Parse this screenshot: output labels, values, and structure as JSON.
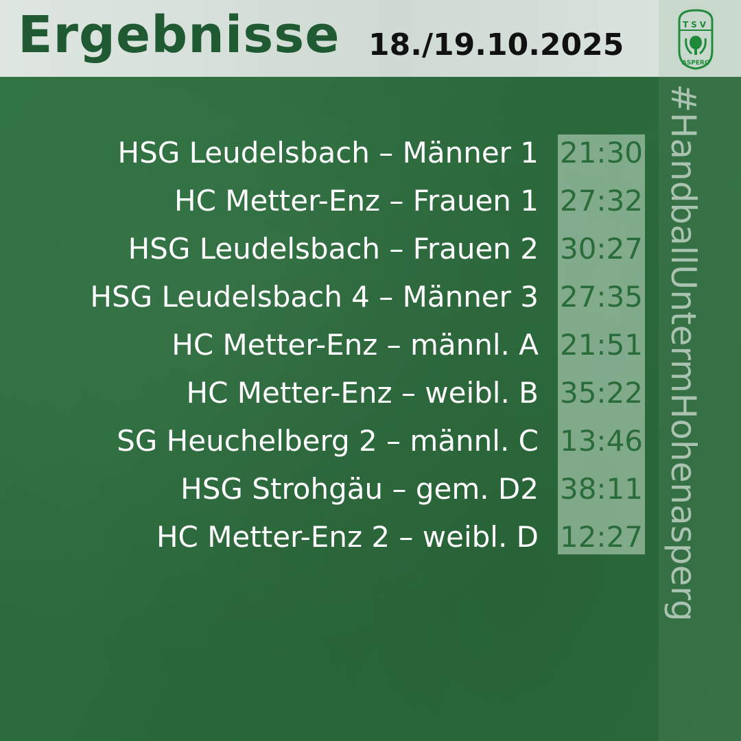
{
  "header": {
    "title": "Ergebnisse",
    "date": "18./19.10.2025"
  },
  "logo": {
    "top_text": "TSV",
    "bottom_text": "ASPERG"
  },
  "hashtag": "#HandballUntermHohenasperg",
  "colors": {
    "background": "#2b6d3c",
    "title": "#1f5a33",
    "score_text": "#2a6b3a"
  },
  "results": [
    {
      "match": "HSG Leudelsbach – Männer 1",
      "score": "21:30"
    },
    {
      "match": "HC Metter-Enz – Frauen 1",
      "score": "27:32"
    },
    {
      "match": "HSG Leudelsbach – Frauen 2",
      "score": "30:27"
    },
    {
      "match": "HSG Leudelsbach 4 – Männer 3",
      "score": "27:35"
    },
    {
      "match": "HC Metter-Enz – männl. A",
      "score": "21:51"
    },
    {
      "match": "HC Metter-Enz – weibl. B",
      "score": "35:22"
    },
    {
      "match": "SG Heuchelberg 2 – männl. C",
      "score": "13:46"
    },
    {
      "match": "HSG Strohgäu – gem. D2",
      "score": "38:11"
    },
    {
      "match": "HC Metter-Enz 2 – weibl. D",
      "score": "12:27"
    }
  ]
}
